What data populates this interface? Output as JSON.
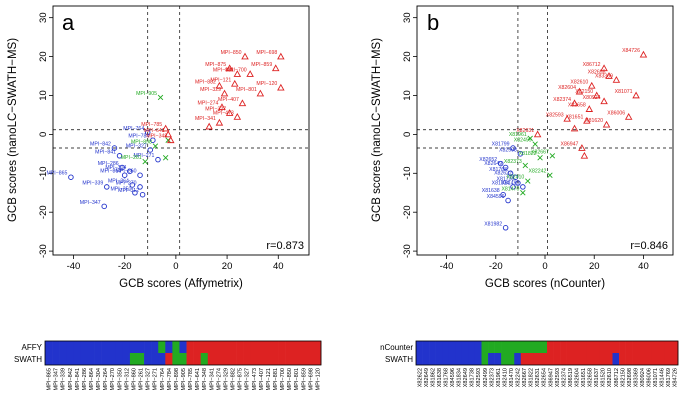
{
  "colors": {
    "blue": "#2233cc",
    "red": "#dd2222",
    "green": "#22aa22"
  },
  "chart_data": [
    {
      "type": "scatter",
      "panel": "a",
      "correlation": "r=0.873",
      "xlabel": "GCB scores (Affymetrix)",
      "ylabel": "GCB scores (nanoLC−SWATH−MS)",
      "xlim": [
        -48,
        52
      ],
      "ylim": [
        -31,
        33
      ],
      "xticks": [
        -40,
        -20,
        0,
        20,
        40
      ],
      "yticks": [
        -30,
        -20,
        -10,
        0,
        10,
        20,
        30
      ],
      "ref_lines": {
        "x": [
          -11,
          1.5
        ],
        "y": [
          1.2,
          -3.5
        ]
      },
      "points": [
        {
          "x": -41,
          "y": -11,
          "label": "MPI−865",
          "group": "blue",
          "marker": "circle"
        },
        {
          "x": -28,
          "y": -18.5,
          "label": "MPI−347",
          "group": "blue",
          "marker": "circle"
        },
        {
          "x": -27,
          "y": -13.5,
          "label": "MPI−339",
          "group": "blue",
          "marker": "circle"
        },
        {
          "x": -24,
          "y": -3.5,
          "label": "MPI−842",
          "group": "blue",
          "marker": "circle"
        },
        {
          "x": -22,
          "y": -5.5,
          "label": "MPI−841",
          "group": "blue",
          "marker": "circle"
        },
        {
          "x": -21,
          "y": -8.5,
          "label": "MPI−286",
          "group": "blue",
          "marker": "circle"
        },
        {
          "x": -20,
          "y": -10.5,
          "label": "MPI−864",
          "group": "blue",
          "marker": "circle"
        },
        {
          "x": -18,
          "y": -9.5,
          "label": "MPI−304",
          "group": "blue",
          "marker": "circle"
        },
        {
          "x": -17,
          "y": -13,
          "label": "MPI−264",
          "group": "blue",
          "marker": "circle"
        },
        {
          "x": -14,
          "y": -13.5,
          "label": "MPI−270",
          "group": "blue",
          "marker": "circle"
        },
        {
          "x": -13,
          "y": -15.5,
          "label": "MPI−312",
          "group": "blue",
          "marker": "circle"
        },
        {
          "x": -16,
          "y": -15,
          "label": "MPI−350",
          "group": "blue",
          "marker": "circle"
        },
        {
          "x": -10,
          "y": -4,
          "label": "MPI−327",
          "group": "blue",
          "marker": "circle"
        },
        {
          "x": -11,
          "y": 0.5,
          "label": "MPI−764",
          "group": "blue",
          "marker": "circle"
        },
        {
          "x": -9,
          "y": -1.5,
          "label": "MPI−784",
          "group": "blue",
          "marker": "circle"
        },
        {
          "x": -14,
          "y": -10.5,
          "label": "MPI−860",
          "group": "blue",
          "marker": "circle"
        },
        {
          "x": -7,
          "y": -6.5,
          "label": "MPI−271",
          "group": "blue",
          "marker": "circle"
        },
        {
          "x": -6,
          "y": 9.5,
          "label": "MPI−905",
          "group": "green",
          "marker": "x"
        },
        {
          "x": -8,
          "y": -3,
          "label": "MPI−898",
          "group": "green",
          "marker": "x"
        },
        {
          "x": -12,
          "y": -7,
          "label": "MPI−261",
          "group": "green",
          "marker": "x"
        },
        {
          "x": -4,
          "y": -6,
          "label": "",
          "group": "green",
          "marker": "x"
        },
        {
          "x": -3,
          "y": -1.5,
          "label": "",
          "group": "green",
          "marker": "x"
        },
        {
          "x": 27,
          "y": 20,
          "label": "MPI−850",
          "group": "red",
          "marker": "triangle"
        },
        {
          "x": 41,
          "y": 20,
          "label": "MPI−698",
          "group": "red",
          "marker": "triangle"
        },
        {
          "x": 21,
          "y": 17,
          "label": "MPI−875",
          "group": "red",
          "marker": "triangle"
        },
        {
          "x": 39,
          "y": 17,
          "label": "MPI−859",
          "group": "red",
          "marker": "triangle"
        },
        {
          "x": 24,
          "y": 15.5,
          "label": "MPI−881",
          "group": "red",
          "marker": "triangle"
        },
        {
          "x": 29,
          "y": 15.5,
          "label": "MPI−700",
          "group": "red",
          "marker": "triangle"
        },
        {
          "x": 23,
          "y": 13,
          "label": "MPI−121",
          "group": "red",
          "marker": "triangle"
        },
        {
          "x": 17,
          "y": 12.5,
          "label": "MPI−882",
          "group": "red",
          "marker": "triangle"
        },
        {
          "x": 41,
          "y": 12,
          "label": "MPI−120",
          "group": "red",
          "marker": "triangle"
        },
        {
          "x": 19,
          "y": 10.5,
          "label": "MPI−329",
          "group": "red",
          "marker": "triangle"
        },
        {
          "x": 33,
          "y": 10.5,
          "label": "MPI−801",
          "group": "red",
          "marker": "triangle"
        },
        {
          "x": 26,
          "y": 8,
          "label": "MPI−407",
          "group": "red",
          "marker": "triangle"
        },
        {
          "x": 18,
          "y": 7,
          "label": "MPI−274",
          "group": "red",
          "marker": "triangle"
        },
        {
          "x": 21,
          "y": 5.5,
          "label": "MPI−327",
          "group": "red",
          "marker": "triangle"
        },
        {
          "x": 24,
          "y": 4.5,
          "label": "MPI−473",
          "group": "red",
          "marker": "triangle"
        },
        {
          "x": 17,
          "y": 3,
          "label": "MPI−341",
          "group": "red",
          "marker": "triangle"
        },
        {
          "x": -4,
          "y": 1.5,
          "label": "MPI−785",
          "group": "red",
          "marker": "triangle"
        },
        {
          "x": -3,
          "y": 0,
          "label": "MPI−641",
          "group": "red",
          "marker": "triangle"
        },
        {
          "x": -2,
          "y": -1.5,
          "label": "MPI−348",
          "group": "red",
          "marker": "triangle"
        },
        {
          "x": 13,
          "y": 2,
          "label": "",
          "group": "red",
          "marker": "triangle"
        }
      ]
    },
    {
      "type": "scatter",
      "panel": "b",
      "correlation": "r=0.846",
      "xlabel": "GCB scores (nCounter)",
      "ylabel": "GCB scores (nanoLC−SWATH−MS)",
      "xlim": [
        -52,
        52
      ],
      "ylim": [
        -31,
        33
      ],
      "xticks": [
        -40,
        -20,
        0,
        20,
        40
      ],
      "yticks": [
        -30,
        -20,
        -10,
        0,
        10,
        20,
        30
      ],
      "ref_lines": {
        "x": [
          -11,
          1
        ],
        "y": [
          1.2,
          -3.5
        ]
      },
      "points": [
        {
          "x": -16,
          "y": -24,
          "label": "X81982",
          "group": "blue",
          "marker": "circle"
        },
        {
          "x": -17,
          "y": -15.5,
          "label": "X81638",
          "group": "blue",
          "marker": "circle"
        },
        {
          "x": -15,
          "y": -17,
          "label": "X84596",
          "group": "blue",
          "marker": "circle"
        },
        {
          "x": -13,
          "y": -3.5,
          "label": "X81799",
          "group": "blue",
          "marker": "circle"
        },
        {
          "x": -18,
          "y": -7.5,
          "label": "X82652",
          "group": "blue",
          "marker": "circle"
        },
        {
          "x": -16,
          "y": -8.5,
          "label": "X82649",
          "group": "blue",
          "marker": "circle"
        },
        {
          "x": -14,
          "y": -10,
          "label": "X81768",
          "group": "blue",
          "marker": "circle"
        },
        {
          "x": -12,
          "y": -11,
          "label": "X82622",
          "group": "blue",
          "marker": "circle"
        },
        {
          "x": -11,
          "y": -12.5,
          "label": "X81738",
          "group": "blue",
          "marker": "circle"
        },
        {
          "x": -9,
          "y": -13.5,
          "label": "X81490",
          "group": "blue",
          "marker": "circle"
        },
        {
          "x": -13,
          "y": -13.5,
          "label": "X81834",
          "group": "blue",
          "marker": "circle"
        },
        {
          "x": -10,
          "y": -5,
          "label": "X82593",
          "group": "blue",
          "marker": "circle"
        },
        {
          "x": -6,
          "y": -1,
          "label": "X81961",
          "group": "green",
          "marker": "x"
        },
        {
          "x": -4,
          "y": -2.5,
          "label": "X82499",
          "group": "green",
          "marker": "x"
        },
        {
          "x": -8,
          "y": -8,
          "label": "X82373",
          "group": "green",
          "marker": "x"
        },
        {
          "x": -2,
          "y": -6,
          "label": "X81822",
          "group": "green",
          "marker": "x"
        },
        {
          "x": -7,
          "y": -12,
          "label": "X82410",
          "group": "green",
          "marker": "x"
        },
        {
          "x": -9,
          "y": -15,
          "label": "X81470",
          "group": "green",
          "marker": "x"
        },
        {
          "x": 3,
          "y": -5.5,
          "label": "X82667",
          "group": "green",
          "marker": "x"
        },
        {
          "x": 2,
          "y": -10.5,
          "label": "X82242",
          "group": "green",
          "marker": "x"
        },
        {
          "x": 40,
          "y": 20.5,
          "label": "X84726",
          "group": "red",
          "marker": "triangle"
        },
        {
          "x": 24,
          "y": 17,
          "label": "X86712",
          "group": "red",
          "marker": "triangle"
        },
        {
          "x": 26,
          "y": 15,
          "label": "X82698",
          "group": "red",
          "marker": "triangle"
        },
        {
          "x": 29,
          "y": 14,
          "label": "X83369",
          "group": "red",
          "marker": "triangle"
        },
        {
          "x": 19,
          "y": 12.5,
          "label": "X82610",
          "group": "red",
          "marker": "triangle"
        },
        {
          "x": 37,
          "y": 10,
          "label": "X81071",
          "group": "red",
          "marker": "triangle"
        },
        {
          "x": 14,
          "y": 11,
          "label": "X82604",
          "group": "red",
          "marker": "triangle"
        },
        {
          "x": 21,
          "y": 10,
          "label": "X82150",
          "group": "red",
          "marker": "triangle"
        },
        {
          "x": 24,
          "y": 8.5,
          "label": "X80924",
          "group": "red",
          "marker": "triangle"
        },
        {
          "x": 12,
          "y": 8,
          "label": "X82374",
          "group": "red",
          "marker": "triangle"
        },
        {
          "x": 18,
          "y": 6.5,
          "label": "X82658",
          "group": "red",
          "marker": "triangle"
        },
        {
          "x": 34,
          "y": 4.5,
          "label": "X86006",
          "group": "red",
          "marker": "triangle"
        },
        {
          "x": 9,
          "y": 4,
          "label": "X82593",
          "group": "red",
          "marker": "triangle"
        },
        {
          "x": 17,
          "y": 3.5,
          "label": "X81651",
          "group": "red",
          "marker": "triangle"
        },
        {
          "x": 25,
          "y": 2.5,
          "label": "X81620",
          "group": "red",
          "marker": "triangle"
        },
        {
          "x": 12,
          "y": 1.5,
          "label": "",
          "group": "red",
          "marker": "triangle"
        },
        {
          "x": 15,
          "y": -3.5,
          "label": "X86947",
          "group": "red",
          "marker": "triangle"
        },
        {
          "x": -3,
          "y": 0,
          "label": "X82631",
          "group": "red",
          "marker": "triangle"
        },
        {
          "x": 16,
          "y": -5.5,
          "label": "",
          "group": "red",
          "marker": "triangle"
        }
      ]
    },
    {
      "type": "heatmap",
      "rows": [
        "AFFY",
        "SWATH"
      ],
      "columns": [
        "MPI−865",
        "MPI−347",
        "MPI−339",
        "MPI−842",
        "MPI−841",
        "MPI−286",
        "MPI−864",
        "MPI−304",
        "MPI−264",
        "MPI−270",
        "MPI−350",
        "MPI−312",
        "MPI−860",
        "MPI−261",
        "MPI−327",
        "MPI−271",
        "MPI−764",
        "MPI−784",
        "MPI−898",
        "MPI−905",
        "MPI−785",
        "MPI−641",
        "MPI−348",
        "MPI−341",
        "MPI−274",
        "MPI−329",
        "MPI−882",
        "MPI−875",
        "MPI−327",
        "MPI−473",
        "MPI−407",
        "MPI−121",
        "MPI−881",
        "MPI−700",
        "MPI−850",
        "MPI−801",
        "MPI−859",
        "MPI−698",
        "MPI−120"
      ],
      "values": [
        [
          "blue",
          "blue",
          "blue",
          "blue",
          "blue",
          "blue",
          "blue",
          "blue",
          "blue",
          "blue",
          "blue",
          "blue",
          "blue",
          "blue",
          "blue",
          "blue",
          "green",
          "blue",
          "green",
          "blue",
          "red",
          "red",
          "red",
          "red",
          "red",
          "red",
          "red",
          "red",
          "red",
          "red",
          "red",
          "red",
          "red",
          "red",
          "red",
          "red",
          "red",
          "red",
          "red"
        ],
        [
          "blue",
          "blue",
          "blue",
          "blue",
          "blue",
          "blue",
          "blue",
          "blue",
          "blue",
          "blue",
          "blue",
          "blue",
          "green",
          "green",
          "blue",
          "blue",
          "blue",
          "red",
          "green",
          "green",
          "red",
          "red",
          "green",
          "red",
          "red",
          "red",
          "red",
          "red",
          "red",
          "red",
          "red",
          "red",
          "red",
          "red",
          "red",
          "red",
          "red",
          "red",
          "red"
        ]
      ]
    },
    {
      "type": "heatmap",
      "rows": [
        "nCounter",
        "SWATH"
      ],
      "columns": [
        "X82622",
        "X82649",
        "X81862",
        "X81638",
        "X81768",
        "X84596",
        "X81834",
        "X82649",
        "X81738",
        "X82593",
        "X82499",
        "X82373",
        "X81961",
        "X82410",
        "X81470",
        "X82242",
        "X82667",
        "X81822",
        "X82631",
        "X82654",
        "X86947",
        "X82593",
        "X82374",
        "X86519",
        "X82604",
        "X81651",
        "X82658",
        "X81637",
        "X81520",
        "X82610",
        "X86712",
        "X82150",
        "X82698",
        "X83369",
        "X80924",
        "X86006",
        "X81071",
        "X81446",
        "X81769",
        "X84726"
      ],
      "values": [
        [
          "blue",
          "blue",
          "blue",
          "blue",
          "blue",
          "blue",
          "blue",
          "blue",
          "blue",
          "blue",
          "green",
          "green",
          "green",
          "green",
          "green",
          "green",
          "green",
          "green",
          "green",
          "green",
          "red",
          "red",
          "red",
          "red",
          "red",
          "red",
          "red",
          "red",
          "red",
          "red",
          "red",
          "red",
          "red",
          "red",
          "red",
          "red",
          "red",
          "red",
          "red",
          "red"
        ],
        [
          "blue",
          "blue",
          "blue",
          "blue",
          "blue",
          "blue",
          "blue",
          "blue",
          "blue",
          "blue",
          "green",
          "blue",
          "blue",
          "green",
          "green",
          "blue",
          "red",
          "red",
          "red",
          "red",
          "red",
          "red",
          "red",
          "red",
          "red",
          "red",
          "red",
          "red",
          "red",
          "red",
          "blue",
          "red",
          "red",
          "red",
          "red",
          "red",
          "red",
          "red",
          "red",
          "red"
        ]
      ]
    }
  ]
}
